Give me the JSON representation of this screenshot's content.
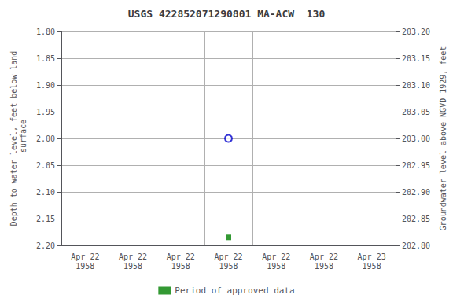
{
  "chart_data": {
    "type": "scatter",
    "title": "USGS 422852071290801 MA-ACW  130",
    "y_label": "Depth to water level, feet below land\n surface",
    "y2_label": "Groundwater level above NGVD 1929, feet",
    "categories": [
      "Apr 22\n1958",
      "Apr 22\n1958",
      "Apr 22\n1958",
      "Apr 22\n1958",
      "Apr 22\n1958",
      "Apr 22\n1958",
      "Apr 23\n1958"
    ],
    "series": [
      {
        "color": "#0000cc",
        "marker": "open_circle",
        "values": [
          null,
          null,
          null,
          2.0,
          null,
          null,
          null
        ]
      },
      {
        "name": "Period of approved data",
        "color": "#008000",
        "marker": "square",
        "values": [
          null,
          null,
          null,
          2.185,
          null,
          null,
          null
        ]
      }
    ],
    "ylim": [
      2.2,
      1.8
    ],
    "yticks": [
      {
        "value": 1.8,
        "label": "1.80"
      },
      1.85,
      {
        "value": 1.9,
        "label": "1.90"
      },
      1.95,
      {
        "value": 2.0,
        "label": "2.00"
      },
      2.05,
      {
        "value": 2.1,
        "label": "2.10"
      },
      2.15,
      {
        "value": 2.2,
        "label": "2.20"
      }
    ],
    "y2lim": [
      202.8,
      203.2
    ],
    "y2ticks": [
      {
        "value": 203.2,
        "label": "203.20"
      },
      203.15,
      {
        "value": 203.1,
        "label": "203.10"
      },
      203.05,
      {
        "value": 203.0,
        "label": "203.00"
      },
      202.95,
      {
        "value": 202.9,
        "label": "202.90"
      },
      202.85,
      {
        "value": 202.8,
        "label": "202.80"
      }
    ],
    "grid": true,
    "legend": "bottom",
    "background_color": "#ffffff",
    "grid_color": "#b0b0b0"
  }
}
